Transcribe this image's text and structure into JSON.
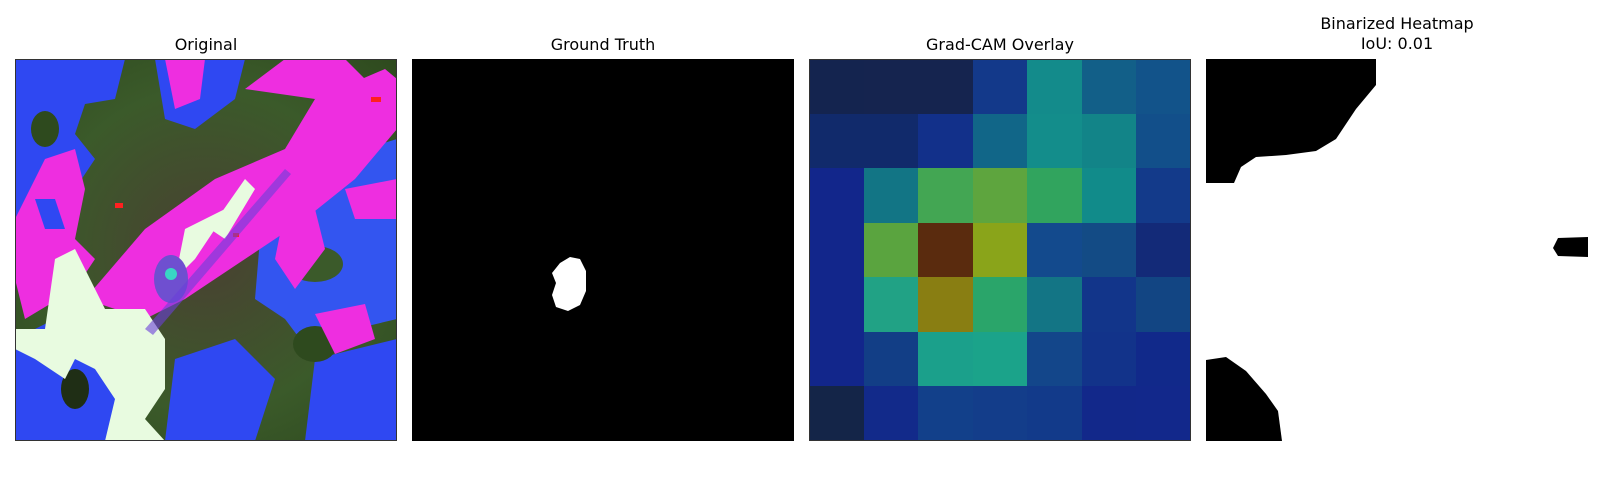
{
  "panels": {
    "original": {
      "title": "Original"
    },
    "ground_truth": {
      "title": "Ground Truth"
    },
    "gradcam": {
      "title": "Grad-CAM Overlay",
      "grid": [
        [
          "#14244f",
          "#15244f",
          "#15244f",
          "#13398a",
          "#138b8b",
          "#125f88",
          "#12538a"
        ],
        [
          "#112a6b",
          "#112a6b",
          "#12308a",
          "#116688",
          "#138d8b",
          "#128488",
          "#124f8a"
        ],
        [
          "#12268b",
          "#127585",
          "#43a653",
          "#5ea53e",
          "#31a45e",
          "#118b8a",
          "#133a8a"
        ],
        [
          "#12268b",
          "#5aa43f",
          "#5a2b0e",
          "#8aa41a",
          "#134a8d",
          "#134b85",
          "#132a78"
        ],
        [
          "#12268b",
          "#21a285",
          "#897e12",
          "#2aa56a",
          "#137585",
          "#12358a",
          "#124583"
        ],
        [
          "#12268b",
          "#123e86",
          "#1ba08b",
          "#1ba38a",
          "#13468a",
          "#12338a",
          "#11298a"
        ],
        [
          "#142548",
          "#122a8a",
          "#12408a",
          "#133d8a",
          "#123a8a",
          "#12288a",
          "#12288b"
        ]
      ]
    },
    "binarized": {
      "title": "Binarized Heatmap\nIoU: 0.01"
    }
  }
}
